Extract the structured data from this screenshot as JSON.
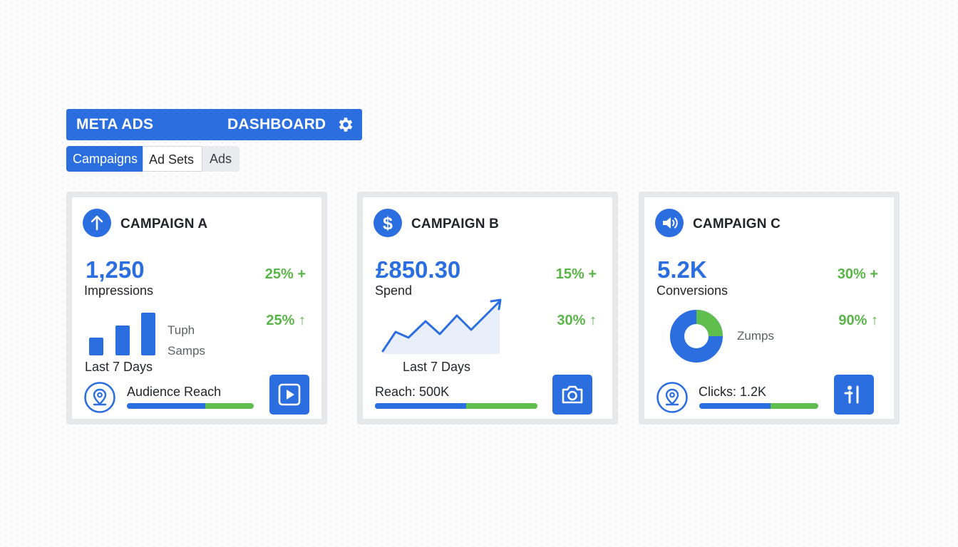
{
  "header": {
    "title_left": "META ADS",
    "title_right": "DASHBOARD",
    "settings_icon": "gear-icon"
  },
  "tabs": [
    {
      "label": "Campaigns",
      "active": true
    },
    {
      "label": "Ad Sets",
      "active": false
    },
    {
      "label": "Ads",
      "active": false
    }
  ],
  "colors": {
    "accent": "#2b6ee0",
    "positive": "#59b548",
    "card_border": "#e6e8ea"
  },
  "cards": [
    {
      "title": "CAMPAIGN A",
      "icon": "arrow-up-icon",
      "metric": "1,250",
      "metric_label": "Impressions",
      "change_1": "25% +",
      "change_2": "25% ↑",
      "chart_labels": [
        "Tuph",
        "Samps"
      ],
      "chart_caption": "Last 7 Days",
      "footer_label": "Audience Reach",
      "footer_icon": "location-pin-icon",
      "progress": 0.62,
      "action_icon": "play-icon"
    },
    {
      "title": "CAMPAIGN B",
      "icon": "dollar-icon",
      "metric": "£850.30",
      "metric_label": "Spend",
      "change_1": "15% +",
      "change_2": "30% ↑",
      "chart_caption": "Last 7 Days",
      "footer_label": "Reach: 500K",
      "progress": 0.56,
      "action_icon": "camera-icon"
    },
    {
      "title": "CAMPAIGN C",
      "icon": "speaker-icon",
      "metric": "5.2K",
      "metric_label": "Conversions",
      "change_1": "30% +",
      "change_2": "90% ↑",
      "chart_labels": [
        "Zumps"
      ],
      "footer_label": "Clicks: 1.2K",
      "footer_icon": "location-pin-icon",
      "progress": 0.6,
      "action_icon": "tool-icon"
    }
  ]
}
